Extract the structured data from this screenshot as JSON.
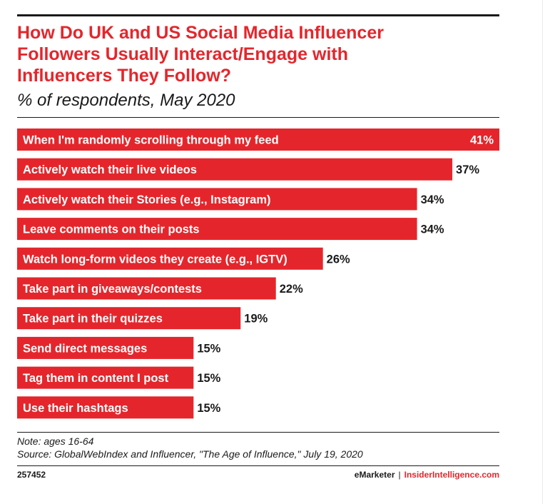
{
  "chart_data": {
    "type": "bar",
    "orientation": "horizontal",
    "title": "How Do UK and US Social Media Influencer Followers Usually Interact/Engage with Influencers They Follow?",
    "title_lines": [
      "How Do UK and US Social Media Influencer",
      "Followers Usually Interact/Engage with",
      "Influencers They Follow?"
    ],
    "subtitle": "% of respondents, May 2020",
    "categories": [
      "When I'm randomly scrolling through my feed",
      "Actively watch their live videos",
      "Actively watch their Stories (e.g., Instagram)",
      "Leave comments on their posts",
      "Watch long-form videos they create (e.g., IGTV)",
      "Take part in giveaways/contests",
      "Take part in their quizzes",
      "Send direct messages",
      "Tag them in content I post",
      "Use their hashtags"
    ],
    "values": [
      41,
      37,
      34,
      34,
      26,
      22,
      19,
      15,
      15,
      15
    ],
    "value_labels": [
      "41%",
      "37%",
      "34%",
      "34%",
      "26%",
      "22%",
      "19%",
      "15%",
      "15%",
      "15%"
    ],
    "unit": "%",
    "xlim": [
      0,
      41
    ],
    "grid": false,
    "legend": "none",
    "bar_color": "#e4262c"
  },
  "footer": {
    "note": "Note: ages 16-64",
    "source": "Source: GlobalWebIndex and Influencer, \"The Age of Influence,\" July 19, 2020",
    "chart_id": "257452",
    "brand_emarketer": "eMarketer",
    "brand_separator": "|",
    "brand_insider": "InsiderIntelligence.com"
  },
  "colors": {
    "title": "#e4262c",
    "text": "#1a1a1a",
    "bar_label": "#ffffff"
  }
}
